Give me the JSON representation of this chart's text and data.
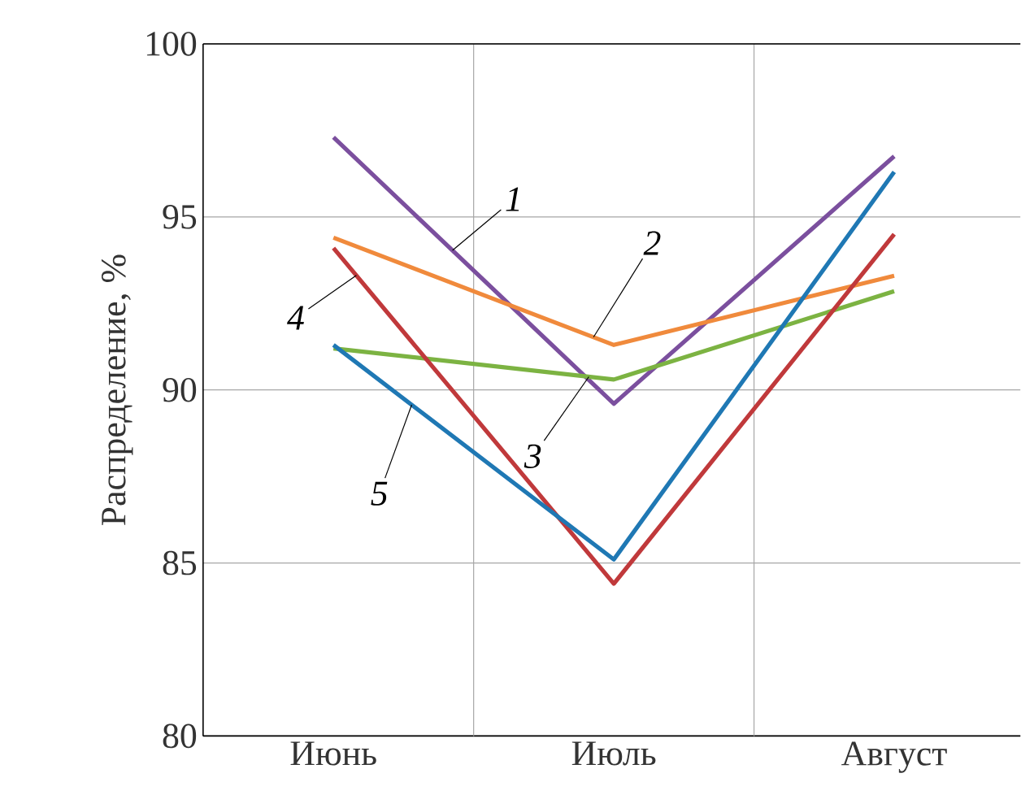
{
  "chart_data": {
    "type": "line",
    "ylabel": "Распределение, %",
    "categories": [
      "Июнь",
      "Июль",
      "Август"
    ],
    "ylim": [
      80,
      100
    ],
    "yticks": [
      80,
      85,
      90,
      95,
      100
    ],
    "grid": true,
    "marker": "none",
    "line_style": "solid",
    "series": [
      {
        "name": "1",
        "color": "#7b4f9e",
        "values": [
          97.3,
          89.6,
          96.75
        ]
      },
      {
        "name": "2",
        "color": "#f08a3c",
        "values": [
          94.4,
          91.3,
          93.3
        ]
      },
      {
        "name": "3",
        "color": "#7cb342",
        "values": [
          91.2,
          90.3,
          92.85
        ]
      },
      {
        "name": "4",
        "color": "#c0393b",
        "values": [
          94.1,
          84.4,
          94.5
        ]
      },
      {
        "name": "5",
        "color": "#1f78b4",
        "values": [
          91.3,
          85.1,
          96.3
        ]
      }
    ]
  }
}
